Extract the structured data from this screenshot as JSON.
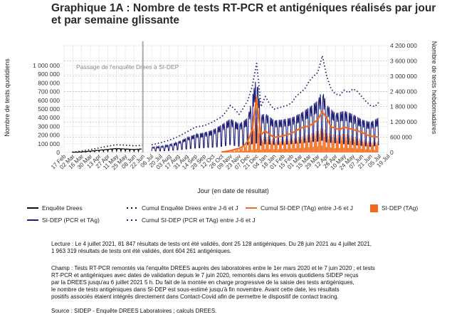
{
  "title_lines": [
    "Graphique 1A : Nombre de tests RT-PCR et antigéniques réalisés par jour",
    "et par semaine glissante"
  ],
  "chart_data": {
    "type": "line",
    "title": "Graphique 1A : Nombre de tests RT-PCR et antigéniques réalisés par jour et par semaine glissante",
    "xlabel": "Jour (en date de résultat)",
    "ylabel_left": "Nombre de tests quotidiens",
    "ylabel_right": "Nombre de tests hebdomadaires",
    "x_ticks": [
      "17 Feb",
      "02 Mar",
      "16 Mar",
      "30 Mar",
      "13 Apr",
      "27 Apr",
      "11 May",
      "25 May",
      "08 Jun",
      "22 Jun",
      "06 Jul",
      "20 Jul",
      "03 Aug",
      "17 Aug",
      "31 Aug",
      "14 Sep",
      "28 Sep",
      "12 Oct",
      "26 Oct",
      "09 Nov",
      "23 Nov",
      "07 Dec",
      "21 Dec",
      "04 Jan",
      "18 Jan",
      "01 Feb",
      "15 Feb",
      "01 Mar",
      "15 Mar",
      "29 Mar",
      "12 Apr",
      "26 Apr",
      "10 May",
      "24 May",
      "07 Jun",
      "21 Jun",
      "05 Jul",
      "19 Jul"
    ],
    "y_left_ticks": [
      "0",
      "100 000",
      "200 000",
      "300 000",
      "400 000",
      "500 000",
      "600 000",
      "700 000",
      "800 000",
      "900 000",
      "1 000 000"
    ],
    "y_left_range": [
      0,
      1000000
    ],
    "y_right_ticks": [
      "0",
      "600 000",
      "1 200 000",
      "1 800 000",
      "2 400 000",
      "3 000 000",
      "3 600 000",
      "4 200 000"
    ],
    "y_right_range": [
      0,
      4200000
    ],
    "annotation": "Passage de l'enquête Drees à SI-DEP",
    "annotation_x": "22 Jun",
    "legend": [
      {
        "label": "Enquête Drees",
        "color": "#111111",
        "style": "solid"
      },
      {
        "label": "Cumul Enquête Drees entre J-6 et J",
        "color": "#111111",
        "style": "dotted"
      },
      {
        "label": "Cumul SI-DEP (TAg) entre J-6 et J",
        "color": "#f26a1b",
        "style": "solid"
      },
      {
        "label": "SI-DEP (TAg)",
        "color": "#f26a1b",
        "style": "bar"
      },
      {
        "label": "SI-DEP (PCR et TAg)",
        "color": "#1f1f7a",
        "style": "solid"
      },
      {
        "label": "Cumul SI-DEP (PCR et TAg) entre J-6 et J",
        "color": "#1f1f7a",
        "style": "dotted"
      }
    ],
    "series": [
      {
        "name": "Enquête Drees",
        "axis": "left",
        "kind": "daily",
        "x": [
          "01 Mar",
          "15 Mar",
          "29 Mar",
          "12 Apr",
          "26 Apr",
          "10 May",
          "24 May",
          "07 Jun",
          "21 Jun"
        ],
        "y": [
          2000,
          6000,
          15000,
          25000,
          35000,
          45000,
          40000,
          35000,
          40000
        ]
      },
      {
        "name": "Cumul Enquête Drees entre J-6 et J",
        "axis": "right",
        "x": [
          "01 Mar",
          "15 Mar",
          "29 Mar",
          "12 Apr",
          "26 Apr",
          "10 May",
          "24 May",
          "07 Jun",
          "21 Jun"
        ],
        "y": [
          14000,
          50000,
          110000,
          170000,
          240000,
          300000,
          290000,
          260000,
          280000
        ]
      },
      {
        "name": "Cumul SI-DEP (PCR et TAg) entre J-6 et J",
        "axis": "right",
        "x": [
          "06 Jul",
          "20 Jul",
          "03 Aug",
          "17 Aug",
          "31 Aug",
          "14 Sep",
          "28 Sep",
          "12 Oct",
          "26 Oct",
          "02 Nov",
          "09 Nov",
          "16 Nov",
          "23 Nov",
          "30 Nov",
          "07 Dec",
          "14 Dec",
          "21 Dec",
          "24 Dec",
          "28 Dec",
          "04 Jan",
          "11 Jan",
          "18 Jan",
          "25 Jan",
          "01 Feb",
          "08 Feb",
          "15 Feb",
          "22 Feb",
          "01 Mar",
          "08 Mar",
          "15 Mar",
          "22 Mar",
          "29 Mar",
          "05 Apr",
          "12 Apr",
          "19 Apr",
          "26 Apr",
          "03 May",
          "10 May",
          "17 May",
          "24 May",
          "31 May",
          "07 Jun",
          "14 Jun",
          "21 Jun",
          "28 Jun",
          "04 Jul"
        ],
        "y": [
          300000,
          380000,
          480000,
          620000,
          800000,
          1000000,
          1050000,
          1200000,
          1400000,
          1600000,
          1850000,
          1700000,
          1500000,
          1750000,
          2050000,
          2600000,
          3500000,
          2800000,
          1800000,
          2200000,
          1900000,
          1700000,
          1750000,
          1800000,
          1850000,
          1950000,
          2200000,
          2350000,
          2500000,
          2800000,
          3000000,
          3150000,
          3800000,
          3000000,
          2500000,
          2300000,
          2250000,
          2450000,
          2350000,
          2500000,
          2400000,
          2200000,
          2000000,
          1850000,
          1800000,
          1963319
        ]
      },
      {
        "name": "SI-DEP (PCR et TAg)",
        "axis": "left",
        "kind": "daily",
        "x": [
          "06 Jul",
          "20 Jul",
          "03 Aug",
          "17 Aug",
          "31 Aug",
          "14 Sep",
          "28 Sep",
          "12 Oct",
          "26 Oct",
          "09 Nov",
          "23 Nov",
          "07 Dec",
          "21 Dec",
          "28 Dec",
          "04 Jan",
          "18 Jan",
          "01 Feb",
          "15 Feb",
          "01 Mar",
          "15 Mar",
          "29 Mar",
          "05 Apr",
          "12 Apr",
          "26 Apr",
          "10 May",
          "24 May",
          "07 Jun",
          "21 Jun",
          "04 Jul"
        ],
        "low": [
          15000,
          18000,
          22000,
          30000,
          40000,
          50000,
          55000,
          60000,
          70000,
          90000,
          70000,
          90000,
          110000,
          80000,
          100000,
          90000,
          90000,
          100000,
          110000,
          120000,
          130000,
          140000,
          120000,
          110000,
          100000,
          90000,
          80000,
          70000,
          81847
        ],
        "high": [
          60000,
          70000,
          90000,
          120000,
          170000,
          210000,
          230000,
          260000,
          320000,
          390000,
          330000,
          400000,
          880000,
          430000,
          450000,
          370000,
          380000,
          400000,
          450000,
          520000,
          600000,
          720000,
          550000,
          450000,
          480000,
          440000,
          380000,
          350000,
          400000
        ]
      },
      {
        "name": "Cumul SI-DEP (TAg) entre J-6 et J",
        "axis": "right",
        "x": [
          "26 Oct",
          "02 Nov",
          "09 Nov",
          "16 Nov",
          "23 Nov",
          "30 Nov",
          "07 Dec",
          "14 Dec",
          "21 Dec",
          "24 Dec",
          "28 Dec",
          "04 Jan",
          "11 Jan",
          "18 Jan",
          "25 Jan",
          "01 Feb",
          "08 Feb",
          "15 Feb",
          "22 Feb",
          "01 Mar",
          "08 Mar",
          "15 Mar",
          "22 Mar",
          "29 Mar",
          "05 Apr",
          "12 Apr",
          "19 Apr",
          "26 Apr",
          "03 May",
          "10 May",
          "17 May",
          "24 May",
          "31 May",
          "07 Jun",
          "14 Jun",
          "21 Jun",
          "28 Jun",
          "04 Jul"
        ],
        "y": [
          20000,
          40000,
          70000,
          120000,
          160000,
          250000,
          450000,
          900000,
          2150000,
          1400000,
          700000,
          850000,
          700000,
          600000,
          620000,
          650000,
          700000,
          750000,
          850000,
          950000,
          1000000,
          1050000,
          1150000,
          1300000,
          1600000,
          1350000,
          1000000,
          950000,
          900000,
          1000000,
          950000,
          900000,
          850000,
          800000,
          700000,
          640000,
          620000,
          604261
        ]
      },
      {
        "name": "SI-DEP (TAg)",
        "axis": "left",
        "kind": "bars",
        "x": [
          "26 Oct",
          "09 Nov",
          "23 Nov",
          "07 Dec",
          "21 Dec",
          "28 Dec",
          "04 Jan",
          "18 Jan",
          "01 Feb",
          "15 Feb",
          "01 Mar",
          "15 Mar",
          "29 Mar",
          "05 Apr",
          "12 Apr",
          "26 Apr",
          "10 May",
          "24 May",
          "07 Jun",
          "21 Jun",
          "04 Jul"
        ],
        "low": [
          3000,
          6000,
          12000,
          20000,
          40000,
          30000,
          40000,
          35000,
          40000,
          45000,
          50000,
          60000,
          70000,
          80000,
          60000,
          50000,
          55000,
          50000,
          40000,
          30000,
          25128
        ],
        "high": [
          8000,
          18000,
          45000,
          120000,
          520000,
          180000,
          210000,
          160000,
          170000,
          180000,
          200000,
          230000,
          280000,
          330000,
          260000,
          220000,
          240000,
          210000,
          170000,
          140000,
          140000
        ]
      }
    ]
  },
  "notes": {
    "reading": [
      "Lecture : Le 4 juillet 2021, 81 847 résultats de tests ont été validés, dont 25 128 antigéniques. Du 28 juin 2021 au 4 juillet 2021,",
      "1 963 319 résultats de tests ont été validés, dont 604 261 antigéniques."
    ],
    "scope": [
      "Champ : Tests RT-PCR remontés via l'enquête DREES auprès des laboratoires entre le 1er mars 2020 et le 7 juin 2020 ; et tests",
      "RT-PCR et antigéniques avec dates de validation depuis le 7 juin 2020, remontés dans les envois quotidiens SIDEP reçus",
      "par la DREES jusqu'au 6 juillet 2021 5 h. Du fait de la montée en charge progressive de la saisie des tests antigéniques,",
      "le nombre de tests antigéniques dans SI-DEP est sous-estimé jusqu'à fin novembre. Avant cette date, les résultats",
      "positifs associés étaient intégrés directement dans Contact-Covid afin de permettre le dispositif de contact tracing."
    ],
    "source": "Source : SIDEP - Enquête DREES Laboratoires ; calculs DREES."
  }
}
